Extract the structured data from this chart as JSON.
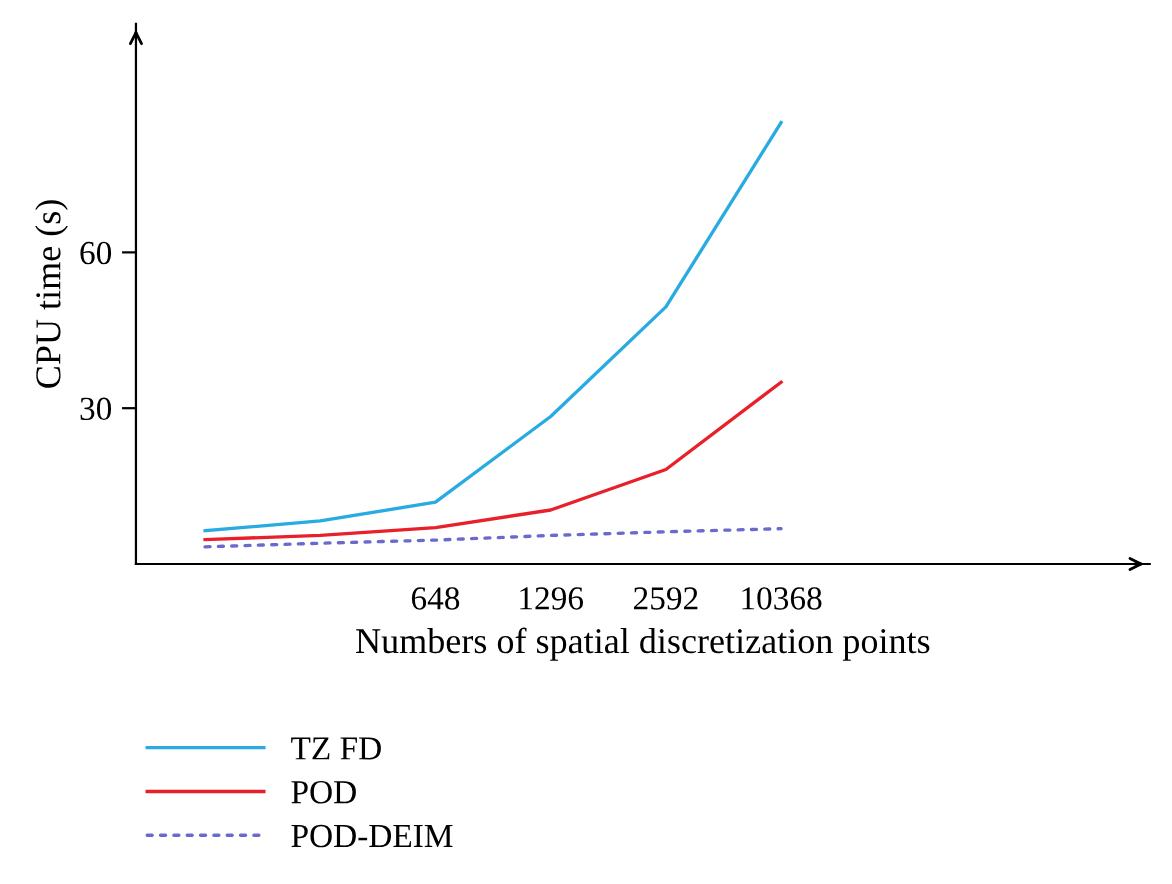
{
  "chart_data": {
    "type": "line",
    "xlabel": "Numbers of spatial discretization points",
    "ylabel": "CPU time (s)",
    "categories": [
      null,
      null,
      "648",
      "1296",
      "2592",
      "10368"
    ],
    "ylim": [
      0,
      104
    ],
    "yticks": [
      30,
      60
    ],
    "grid": false,
    "legend": "bottom left",
    "series": [
      {
        "name": "TZ FD",
        "color": "#29abe2",
        "line_style": "solid",
        "values": [
          6.4,
          8.3,
          11.9,
          28.4,
          49.5,
          85.0
        ]
      },
      {
        "name": "POD",
        "color": "#e8202a",
        "line_style": "solid",
        "values": [
          4.7,
          5.5,
          7.0,
          10.4,
          18.2,
          35.0
        ]
      },
      {
        "name": "POD-DEIM",
        "color": "#6a6acd",
        "line_style": "dotted",
        "values": [
          3.3,
          4.0,
          4.6,
          5.5,
          6.2,
          6.8
        ]
      }
    ]
  }
}
